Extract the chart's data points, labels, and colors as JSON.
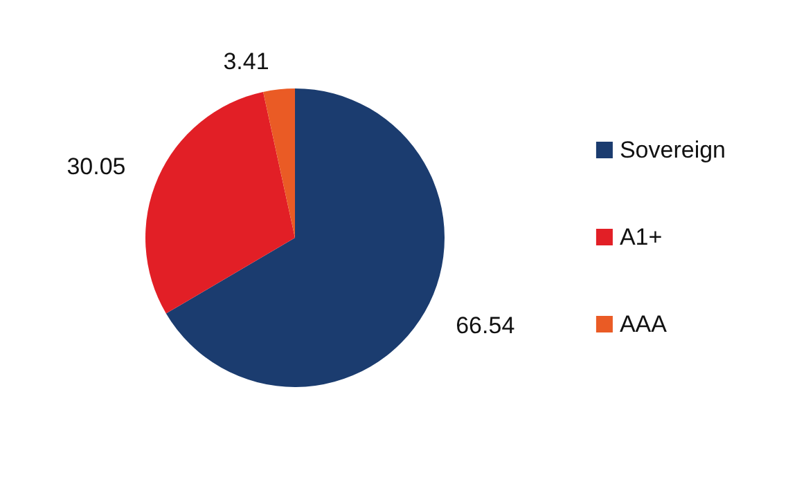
{
  "chart_data": {
    "type": "pie",
    "categories": [
      "Sovereign",
      "A1+",
      "AAA"
    ],
    "values": [
      66.54,
      30.05,
      3.41
    ],
    "colors": [
      "#1b3c6f",
      "#e21f26",
      "#ea5b25"
    ],
    "data_labels": true,
    "legend": "right"
  }
}
